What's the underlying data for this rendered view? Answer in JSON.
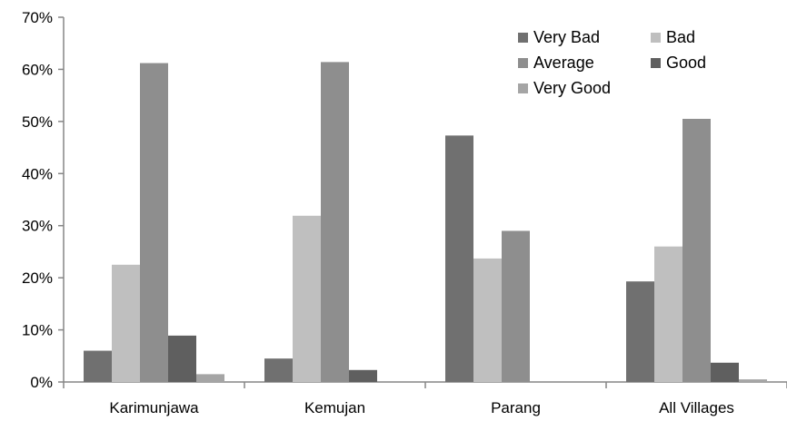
{
  "chart_data": {
    "type": "bar",
    "categories": [
      "Karimunjawa",
      "Kemujan",
      "Parang",
      "All Villages"
    ],
    "series": [
      {
        "name": "Very Bad",
        "color": "#707070",
        "values": [
          6,
          4.5,
          47.3,
          19.3
        ]
      },
      {
        "name": "Bad",
        "color": "#bfbfbf",
        "values": [
          22.5,
          31.9,
          23.7,
          26
        ]
      },
      {
        "name": "Average",
        "color": "#8e8e8e",
        "values": [
          61.2,
          61.4,
          29,
          50.5
        ]
      },
      {
        "name": "Good",
        "color": "#5f5f5f",
        "values": [
          8.9,
          2.3,
          0,
          3.7
        ]
      },
      {
        "name": "Very Good",
        "color": "#a5a5a5",
        "values": [
          1.5,
          0,
          0,
          0.5
        ]
      }
    ],
    "ylim": [
      0,
      70
    ],
    "yticks": [
      "0%",
      "10%",
      "20%",
      "30%",
      "40%",
      "50%",
      "60%",
      "70%"
    ],
    "grid": false,
    "legend_position": "top-right",
    "title": "",
    "xlabel": "",
    "ylabel": ""
  }
}
